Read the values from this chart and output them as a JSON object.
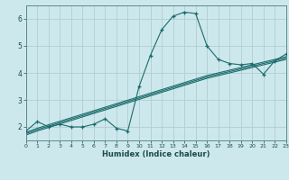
{
  "title": "",
  "xlabel": "Humidex (Indice chaleur)",
  "ylabel": "",
  "background_color": "#cde8ec",
  "grid_color": "#b0ced2",
  "line_color": "#1a6b6b",
  "x_data": [
    0,
    1,
    2,
    3,
    4,
    5,
    6,
    7,
    8,
    9,
    10,
    11,
    12,
    13,
    14,
    15,
    16,
    17,
    18,
    19,
    20,
    21,
    22,
    23
  ],
  "y_main": [
    1.85,
    2.2,
    2.0,
    2.1,
    2.0,
    2.0,
    2.1,
    2.3,
    1.95,
    1.85,
    3.5,
    4.65,
    5.6,
    6.1,
    6.25,
    6.2,
    5.0,
    4.5,
    4.35,
    4.3,
    4.35,
    3.95,
    4.45,
    4.7
  ],
  "y_line1": [
    1.7,
    1.85,
    1.98,
    2.11,
    2.24,
    2.37,
    2.5,
    2.63,
    2.76,
    2.89,
    3.02,
    3.15,
    3.28,
    3.41,
    3.54,
    3.67,
    3.8,
    3.9,
    4.0,
    4.1,
    4.2,
    4.3,
    4.4,
    4.5
  ],
  "y_line2": [
    1.75,
    1.9,
    2.03,
    2.16,
    2.29,
    2.42,
    2.55,
    2.68,
    2.81,
    2.94,
    3.07,
    3.2,
    3.33,
    3.46,
    3.59,
    3.72,
    3.85,
    3.95,
    4.05,
    4.15,
    4.25,
    4.35,
    4.45,
    4.55
  ],
  "y_line3": [
    1.8,
    1.95,
    2.08,
    2.21,
    2.34,
    2.47,
    2.6,
    2.73,
    2.86,
    2.99,
    3.12,
    3.25,
    3.38,
    3.51,
    3.64,
    3.77,
    3.9,
    4.0,
    4.1,
    4.2,
    4.3,
    4.4,
    4.5,
    4.6
  ],
  "xlim": [
    0,
    23
  ],
  "ylim": [
    1.5,
    6.5
  ],
  "yticks": [
    2,
    3,
    4,
    5,
    6
  ],
  "xticks": [
    0,
    1,
    2,
    3,
    4,
    5,
    6,
    7,
    8,
    9,
    10,
    11,
    12,
    13,
    14,
    15,
    16,
    17,
    18,
    19,
    20,
    21,
    22,
    23
  ]
}
